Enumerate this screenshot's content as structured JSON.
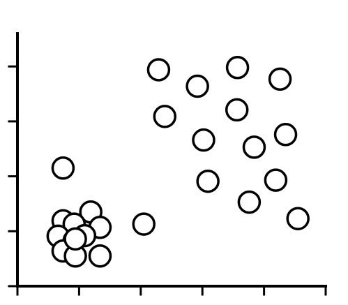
{
  "chart_data": {
    "type": "scatter",
    "title": "",
    "xlabel": "",
    "ylabel": "",
    "xlim": [
      0,
      5
    ],
    "ylim": [
      0,
      4.6
    ],
    "x_ticks": [
      0,
      1,
      2,
      3,
      4,
      5
    ],
    "y_ticks": [
      0,
      1,
      2,
      3,
      4
    ],
    "x_tick_labels": [],
    "y_tick_labels": [],
    "grid": false,
    "legend": "none",
    "marker": "open-circle",
    "colors": {
      "axis": "#000000",
      "marker_stroke": "#000000",
      "marker_fill": "#ffffff"
    },
    "series": [
      {
        "points": [
          {
            "x": 0.74,
            "y": 2.15
          },
          {
            "x": 0.74,
            "y": 1.19
          },
          {
            "x": 1.19,
            "y": 1.35
          },
          {
            "x": 0.92,
            "y": 1.13
          },
          {
            "x": 1.34,
            "y": 1.07
          },
          {
            "x": 0.66,
            "y": 0.91
          },
          {
            "x": 0.92,
            "y": 0.83
          },
          {
            "x": 0.74,
            "y": 0.64
          },
          {
            "x": 0.94,
            "y": 0.55
          },
          {
            "x": 1.34,
            "y": 0.55
          },
          {
            "x": 1.09,
            "y": 0.92
          },
          {
            "x": 0.94,
            "y": 0.86
          },
          {
            "x": 2.05,
            "y": 1.13
          },
          {
            "x": 2.29,
            "y": 3.94
          },
          {
            "x": 2.39,
            "y": 3.09
          },
          {
            "x": 2.92,
            "y": 3.64
          },
          {
            "x": 3.02,
            "y": 2.66
          },
          {
            "x": 3.09,
            "y": 1.91
          },
          {
            "x": 3.57,
            "y": 3.98
          },
          {
            "x": 3.56,
            "y": 3.21
          },
          {
            "x": 3.76,
            "y": 1.53
          },
          {
            "x": 3.84,
            "y": 2.53
          },
          {
            "x": 4.26,
            "y": 3.77
          },
          {
            "x": 4.35,
            "y": 2.76
          },
          {
            "x": 4.19,
            "y": 1.93
          },
          {
            "x": 4.55,
            "y": 1.23
          }
        ]
      }
    ]
  }
}
